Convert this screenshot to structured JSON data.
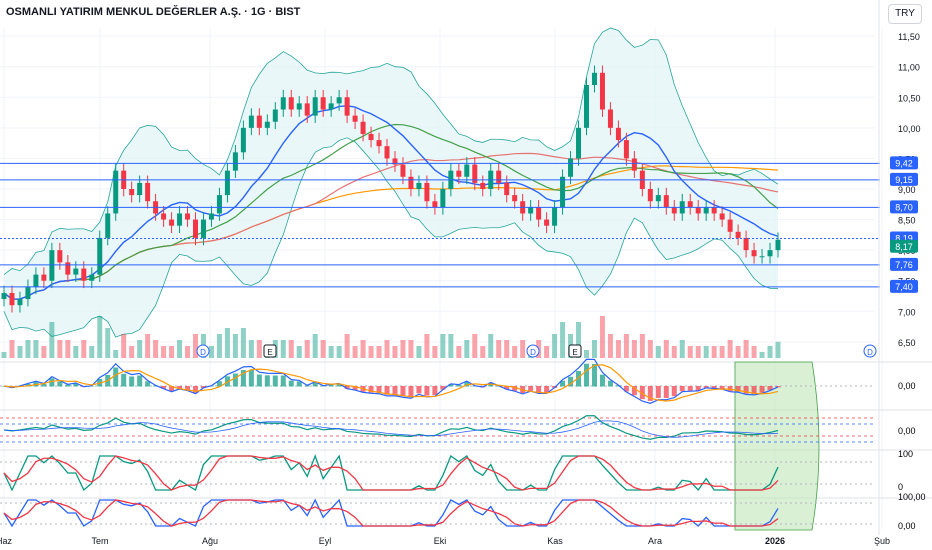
{
  "title": "OSMANLI YATIRIM MENKUL DEĞERLER A.Ş. · 1G · BIST",
  "currency": "TRY",
  "colors": {
    "up": "#089981",
    "down": "#f23645",
    "bb": "#26a69a",
    "bbfill": "#e0f4f7",
    "ma_blue": "#2962ff",
    "ma_orange": "#ff9800",
    "ma_green": "#43a047",
    "ma_red": "#e57373",
    "hline": "#2962ff",
    "stoch_k": "#2962ff",
    "stoch_d": "#f23645",
    "highlight": "#b9e4b2"
  },
  "chart_data": {
    "type": "candlestick",
    "y_ticks": [
      "11,50",
      "11,00",
      "10,50",
      "10,00",
      "9,50",
      "9,00",
      "8,50",
      "8,00",
      "7,50",
      "7,00",
      "6,50"
    ],
    "x_ticks": [
      "Haz",
      "Tem",
      "Ağu",
      "Eyl",
      "Eki",
      "Kas",
      "Ara",
      "2026",
      "Şub"
    ],
    "ylim": [
      6.4,
      11.6
    ],
    "closes": [
      7.3,
      7.1,
      7.2,
      7.4,
      7.6,
      7.5,
      8.0,
      7.8,
      7.6,
      7.7,
      7.5,
      7.6,
      8.2,
      8.6,
      9.3,
      9.0,
      8.9,
      9.1,
      8.8,
      8.6,
      8.5,
      8.4,
      8.6,
      8.5,
      8.2,
      8.5,
      8.6,
      8.9,
      9.3,
      9.6,
      10.0,
      10.2,
      10.0,
      10.1,
      10.3,
      10.5,
      10.3,
      10.4,
      10.2,
      10.5,
      10.3,
      10.4,
      10.5,
      10.2,
      10.1,
      9.9,
      9.8,
      9.7,
      9.5,
      9.4,
      9.2,
      9.0,
      9.1,
      8.8,
      8.7,
      9.0,
      9.3,
      9.2,
      9.4,
      9.1,
      9.0,
      9.3,
      9.1,
      8.9,
      8.8,
      8.6,
      8.7,
      8.5,
      8.4,
      8.7,
      9.2,
      9.5,
      10.0,
      10.7,
      10.9,
      10.3,
      10.0,
      9.8,
      9.5,
      9.3,
      9.0,
      8.8,
      8.9,
      8.7,
      8.6,
      8.8,
      8.7,
      8.6,
      8.7,
      8.6,
      8.5,
      8.3,
      8.2,
      8.0,
      7.9,
      7.9,
      8.0,
      8.17
    ],
    "h_levels": [
      {
        "value": 9.42,
        "label": "9,42"
      },
      {
        "value": 9.15,
        "label": "9,15"
      },
      {
        "value": 8.7,
        "label": "8,70"
      },
      {
        "value": 8.19,
        "label": "8,19"
      },
      {
        "value": 8.17,
        "label": "8,17"
      },
      {
        "value": 7.76,
        "label": "7,76"
      },
      {
        "value": 7.4,
        "label": "7,40"
      }
    ],
    "events": [
      "D",
      "E",
      "D",
      "E",
      "D"
    ],
    "macd_label": "0,00",
    "rsi_label": "0,00",
    "stoch1_labels": [
      "100",
      "0"
    ],
    "stoch2_labels": [
      "100,00",
      "0,00"
    ]
  }
}
